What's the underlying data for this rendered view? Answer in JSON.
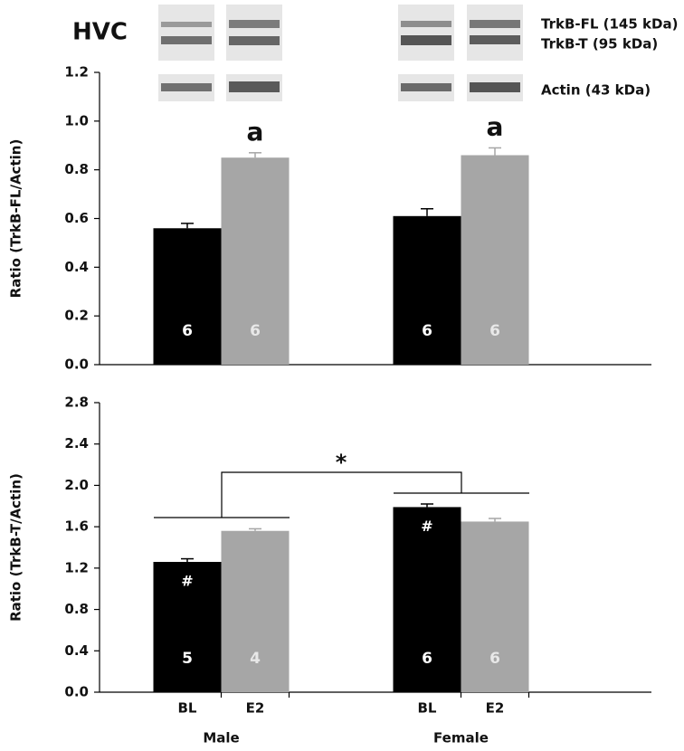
{
  "figure_label": "HVC",
  "blot_labels": [
    "TrkB-FL (145 kDa)",
    "TrkB-T (95 kDa)",
    "Actin (43 kDa)"
  ],
  "chart_data": [
    {
      "type": "bar",
      "ylabel": "Ratio (TrkB-FL/Actin)",
      "values": [
        0.56,
        0.85,
        0.61,
        0.86
      ],
      "errors": [
        0.02,
        0.02,
        0.03,
        0.03
      ],
      "colors": [
        "#000000",
        "#a6a6a6",
        "#000000",
        "#a6a6a6"
      ],
      "n": [
        6,
        6,
        6,
        6
      ],
      "value_annotations": [
        null,
        "a",
        null,
        "a"
      ],
      "ylim": [
        0,
        1.2
      ],
      "yticks": [
        {
          "value": 0,
          "label": "0.0"
        },
        0.2,
        0.4,
        0.6,
        0.8,
        {
          "value": 1,
          "label": "1.0"
        },
        1.2
      ]
    },
    {
      "type": "bar",
      "ylabel": "Ratio (TrkB-T/Actin)",
      "categories": [
        "BL",
        "E2",
        "BL",
        "E2"
      ],
      "groups": [
        "Male",
        "Female"
      ],
      "values": [
        1.26,
        1.56,
        1.79,
        1.65
      ],
      "errors": [
        0.03,
        0.02,
        0.03,
        0.03
      ],
      "colors": [
        "#000000",
        "#a6a6a6",
        "#000000",
        "#a6a6a6"
      ],
      "n": [
        5,
        4,
        6,
        6
      ],
      "value_annotations": [
        "#",
        null,
        "#",
        null
      ],
      "significance": "*",
      "ylim": [
        0,
        2.8
      ],
      "yticks": [
        {
          "value": 0,
          "label": "0.0"
        },
        0.4,
        0.8,
        1.2,
        1.6,
        {
          "value": 2,
          "label": "2.0"
        },
        2.4,
        2.8
      ]
    }
  ]
}
